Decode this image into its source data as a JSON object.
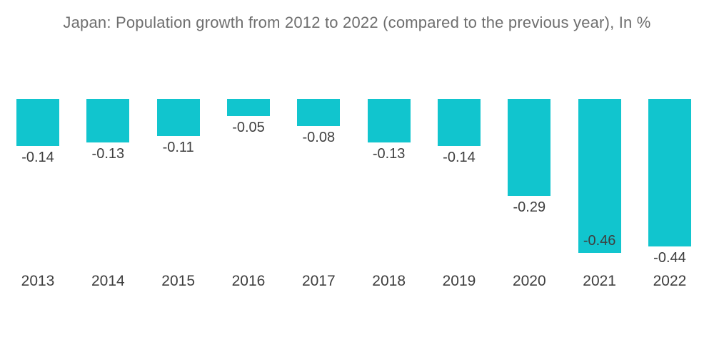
{
  "header": {
    "title": "Japan: Population growth from 2012 to 2022 (compared to the previous year), In %"
  },
  "colors": {
    "bar": "#11C5CE",
    "title_text": "#6E6E6E",
    "value_text": "#3E3E3E",
    "axis_text": "#3E3E3E",
    "background": "#ffffff"
  },
  "chart_data": {
    "type": "bar",
    "title": "Japan: Population growth from 2012 to 2022 (compared to the previous year), In %",
    "categories": [
      "2013",
      "2014",
      "2015",
      "2016",
      "2017",
      "2018",
      "2019",
      "2020",
      "2021",
      "2022"
    ],
    "values": [
      -0.14,
      -0.13,
      -0.11,
      -0.05,
      -0.08,
      -0.13,
      -0.14,
      -0.29,
      -0.46,
      -0.44
    ],
    "value_labels": [
      "-0.14",
      "-0.13",
      "-0.11",
      "-0.05",
      "-0.08",
      "-0.13",
      "-0.14",
      "-0.29",
      "-0.46",
      "-0.44"
    ],
    "value_label_placement": [
      "below",
      "below",
      "below",
      "below",
      "below",
      "below",
      "below",
      "below",
      "inside",
      "below"
    ],
    "xlabel": "",
    "ylabel": "",
    "unit": "%",
    "ylim": [
      -0.5,
      0
    ],
    "baseline_value": 0,
    "grid": false,
    "legend": false,
    "orientation": "vertical",
    "bar_color": "#11C5CE"
  }
}
